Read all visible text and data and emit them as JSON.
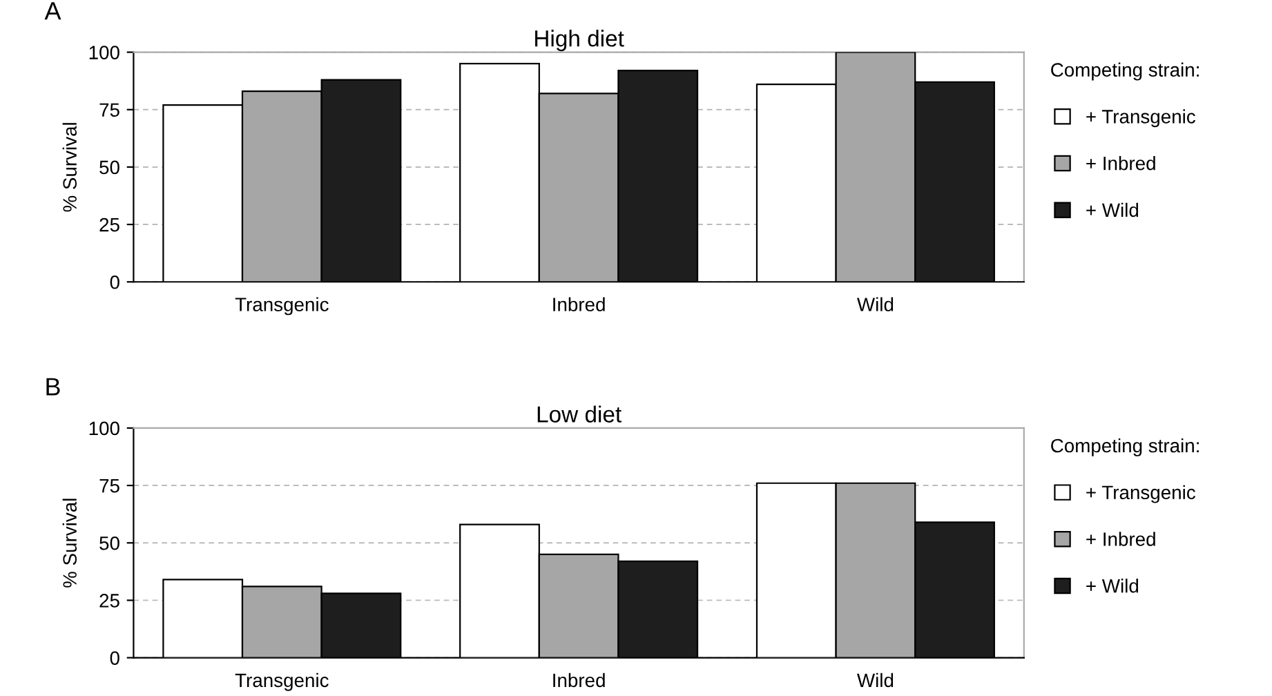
{
  "chart_data": [
    {
      "type": "bar",
      "title": "High diet",
      "ylabel": "% Survival",
      "annotations": [
        "A"
      ],
      "legend_title": "Competing strain:",
      "legend": "right",
      "grid": "y",
      "categories": [
        "Transgenic",
        "Inbred",
        "Wild"
      ],
      "ylim": [
        0,
        100
      ],
      "yticks": [
        0,
        25,
        50,
        75,
        100
      ],
      "series": [
        {
          "name": "+ Transgenic",
          "color": "#ffffff",
          "values": [
            77,
            95,
            86
          ]
        },
        {
          "name": "+ Inbred",
          "color": "#a6a6a6",
          "values": [
            83,
            82,
            100
          ]
        },
        {
          "name": "+ Wild",
          "color": "#1e1e1e",
          "values": [
            88,
            92,
            87
          ]
        }
      ]
    },
    {
      "type": "bar",
      "title": "Low diet",
      "ylabel": "% Survival",
      "annotations": [
        "B"
      ],
      "legend_title": "Competing strain:",
      "legend": "right",
      "grid": "y",
      "categories": [
        "Transgenic",
        "Inbred",
        "Wild"
      ],
      "ylim": [
        0,
        100
      ],
      "yticks": [
        0,
        25,
        50,
        75,
        100
      ],
      "series": [
        {
          "name": "+ Transgenic",
          "color": "#ffffff",
          "values": [
            34,
            58,
            76
          ]
        },
        {
          "name": "+ Inbred",
          "color": "#a6a6a6",
          "values": [
            31,
            45,
            76
          ]
        },
        {
          "name": "+ Wild",
          "color": "#1e1e1e",
          "values": [
            28,
            42,
            59
          ]
        }
      ]
    }
  ]
}
